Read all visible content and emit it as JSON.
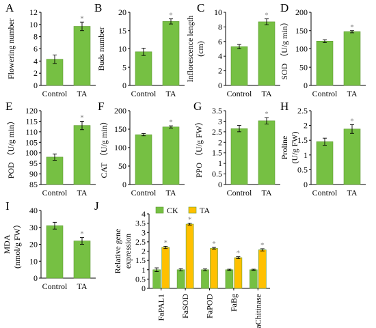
{
  "chart_data": [
    {
      "panel_label": "A",
      "type": "bar",
      "categories": [
        "Control",
        "TA"
      ],
      "values": [
        4.3,
        9.7
      ],
      "errors": [
        0.7,
        0.7
      ],
      "significance": [
        "",
        "*"
      ],
      "ylabel": "Flowering number",
      "ylim": [
        0,
        12
      ],
      "yticks": [
        "0",
        "2",
        "4",
        "6",
        "8",
        "10",
        "12"
      ],
      "colors": [
        "#76c043"
      ]
    },
    {
      "panel_label": "B",
      "type": "bar",
      "categories": [
        "Control",
        "TA"
      ],
      "values": [
        9.2,
        17.5
      ],
      "errors": [
        1.0,
        0.7
      ],
      "significance": [
        "",
        "*"
      ],
      "ylabel": "Buds number",
      "ylim": [
        0,
        20
      ],
      "yticks": [
        "0",
        "5",
        "10",
        "15",
        "20"
      ],
      "colors": [
        "#76c043"
      ]
    },
    {
      "panel_label": "C",
      "type": "bar",
      "categories": [
        "Control",
        "TA"
      ],
      "values": [
        5.3,
        8.7
      ],
      "errors": [
        0.3,
        0.4
      ],
      "significance": [
        "",
        "*"
      ],
      "ylabel": "Inflorescence length",
      "ylabel2": "(cm)",
      "ylim": [
        0,
        10
      ],
      "yticks": [
        "0",
        "2",
        "4",
        "6",
        "8",
        "10"
      ],
      "colors": [
        "#76c043"
      ]
    },
    {
      "panel_label": "D",
      "type": "bar",
      "categories": [
        "Control",
        "TA"
      ],
      "values": [
        121,
        147
      ],
      "errors": [
        4,
        3
      ],
      "significance": [
        "",
        "*"
      ],
      "ylabel": "SOD （U/g min）",
      "ylim": [
        0,
        200
      ],
      "yticks": [
        "0",
        "50",
        "100",
        "150",
        "200"
      ],
      "colors": [
        "#76c043"
      ]
    },
    {
      "panel_label": "E",
      "type": "bar",
      "categories": [
        "Control",
        "TA"
      ],
      "values": [
        98,
        113
      ],
      "errors": [
        1.5,
        2
      ],
      "significance": [
        "",
        "*"
      ],
      "ylabel": "POD （U/g min）",
      "ylim": [
        85,
        120
      ],
      "yticks": [
        "85",
        "90",
        "95",
        "100",
        "105",
        "110",
        "115",
        "120"
      ],
      "colors": [
        "#76c043"
      ]
    },
    {
      "panel_label": "F",
      "type": "bar",
      "categories": [
        "Control",
        "TA"
      ],
      "values": [
        135,
        156
      ],
      "errors": [
        3,
        3
      ],
      "significance": [
        "",
        "*"
      ],
      "ylabel": "CAT （U/g min）",
      "ylim": [
        0,
        200
      ],
      "yticks": [
        "0",
        "50",
        "100",
        "150",
        "200"
      ],
      "colors": [
        "#76c043"
      ]
    },
    {
      "panel_label": "G",
      "type": "bar",
      "categories": [
        "Control",
        "TA"
      ],
      "values": [
        2.65,
        3.02
      ],
      "errors": [
        0.15,
        0.15
      ],
      "significance": [
        "",
        "*"
      ],
      "ylabel": "PPO （U/g FW）",
      "ylim": [
        0,
        3.5
      ],
      "yticks": [
        "0",
        "0.5",
        "1",
        "1.5",
        "2",
        "2.5",
        "3",
        "3.5"
      ],
      "colors": [
        "#76c043"
      ]
    },
    {
      "panel_label": "H",
      "type": "bar",
      "categories": [
        "Control",
        "TA"
      ],
      "values": [
        1.45,
        1.88
      ],
      "errors": [
        0.12,
        0.15
      ],
      "significance": [
        "",
        "*"
      ],
      "ylabel": "Proline",
      "ylabel2": "(U/g FW)",
      "ylim": [
        0,
        2.5
      ],
      "yticks": [
        "0",
        "0.5",
        "1",
        "1.5",
        "2",
        "2.5"
      ],
      "colors": [
        "#76c043"
      ]
    },
    {
      "panel_label": "I",
      "type": "bar",
      "categories": [
        "Control",
        "TA"
      ],
      "values": [
        31,
        22
      ],
      "errors": [
        2,
        2
      ],
      "significance": [
        "",
        "*"
      ],
      "ylabel": "MDA",
      "ylabel2": "(nmol/g FW）",
      "ylim": [
        0,
        40
      ],
      "yticks": [
        "0",
        "10",
        "20",
        "30",
        "40"
      ],
      "colors": [
        "#76c043"
      ]
    },
    {
      "panel_label": "J",
      "type": "bar",
      "categories": [
        "FaPAL1",
        "FaSOD",
        "FaPOD",
        "FaBg",
        "FaChitinase"
      ],
      "series": [
        {
          "name": "CK",
          "values": [
            1.0,
            1.0,
            1.0,
            1.0,
            1.0
          ],
          "errors": [
            0.1,
            0.06,
            0.05,
            0.03,
            0.03
          ],
          "color": "#76c043"
        },
        {
          "name": "TA",
          "values": [
            2.2,
            3.45,
            2.15,
            1.65,
            2.07
          ],
          "errors": [
            0.06,
            0.05,
            0.05,
            0.05,
            0.06
          ],
          "color": "#ffc000",
          "significance": [
            "*",
            "*",
            "*",
            "*",
            "*"
          ]
        }
      ],
      "ylabel": "Relative gene",
      "ylabel2": "expression",
      "ylim": [
        0,
        4
      ],
      "yticks": [
        "0",
        "0.5",
        "1",
        "1.5",
        "2",
        "2.5",
        "3",
        "3.5",
        "4"
      ],
      "legend": "top-left"
    }
  ]
}
